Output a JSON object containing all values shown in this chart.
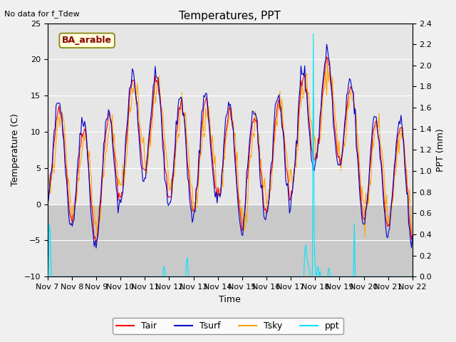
{
  "title": "Temperatures, PPT",
  "no_data_text": "No data for f_Tdew",
  "station_label": "BA_arable",
  "xlabel": "Time",
  "ylabel_left": "Temperature (C)",
  "ylabel_right": "PPT (mm)",
  "xlim": [
    0,
    360
  ],
  "ylim_temp": [
    -10,
    25
  ],
  "ylim_ppt": [
    0.0,
    2.4
  ],
  "x_tick_labels": [
    "Nov 7",
    "Nov 8",
    "Nov 9",
    "Nov 10",
    "Nov 11",
    "Nov 12",
    "Nov 13",
    "Nov 14",
    "Nov 15",
    "Nov 16",
    "Nov 17",
    "Nov 18",
    "Nov 19",
    "Nov 20",
    "Nov 21",
    "Nov 22"
  ],
  "colors": {
    "Tair": "#ff0000",
    "Tsurf": "#0000cc",
    "Tsky": "#ffa500",
    "ppt": "#00e5ff"
  },
  "legend_labels": [
    "Tair",
    "Tsurf",
    "Tsky",
    "ppt"
  ]
}
